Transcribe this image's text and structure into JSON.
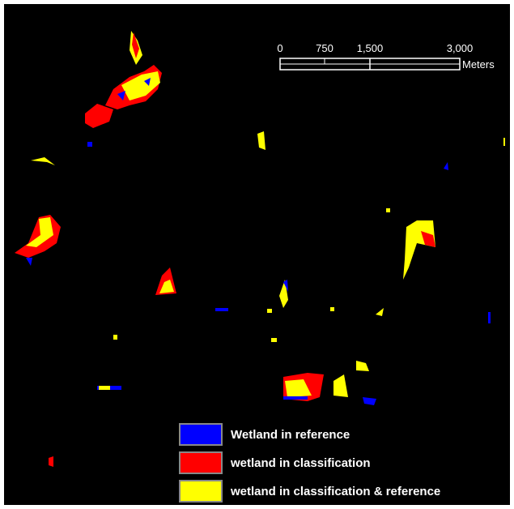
{
  "scale_bar": {
    "ticks": [
      "0",
      "750",
      "1,500",
      "3,000"
    ],
    "unit": "Meters"
  },
  "legend": {
    "items": [
      {
        "label": "Wetland in reference",
        "color": "#0000ff"
      },
      {
        "label": "wetland in classification",
        "color": "#ff0000"
      },
      {
        "label": "wetland in classification & reference",
        "color": "#ffff00"
      }
    ]
  }
}
